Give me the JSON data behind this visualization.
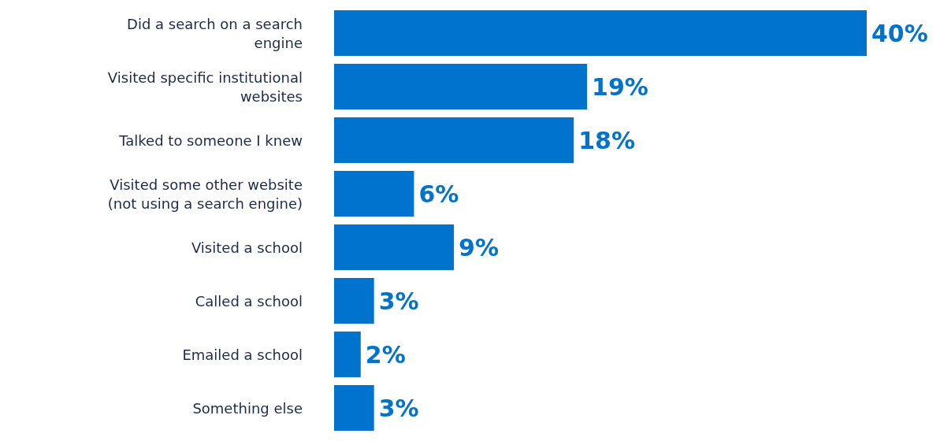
{
  "chart_data": {
    "type": "bar",
    "orientation": "horizontal",
    "categories": [
      "Did a search on a search engine",
      "Visited specific institutional websites",
      "Talked to someone I knew",
      "Visited some other website (not using a search engine)",
      "Visited a school",
      "Called a school",
      "Emailed a school",
      "Something else"
    ],
    "values": [
      40,
      19,
      18,
      6,
      9,
      3,
      2,
      3
    ],
    "value_labels": [
      "40%",
      "19%",
      "18%",
      "6%",
      "9%",
      "3%",
      "2%",
      "3%"
    ],
    "color": "#0073cf",
    "grid": false,
    "legend": false
  }
}
